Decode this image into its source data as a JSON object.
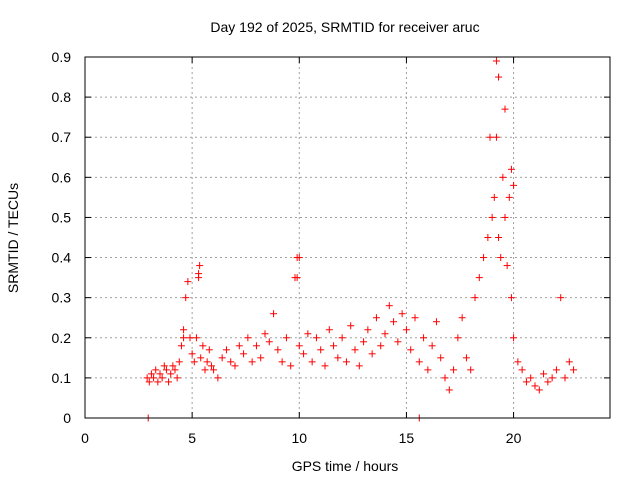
{
  "chart_data": {
    "type": "scatter",
    "title": "Day 192 of 2025, SRMTID for receiver aruc",
    "xlabel": "GPS time / hours",
    "ylabel": "SRMTID / TECUs",
    "xlim": [
      0,
      24.5
    ],
    "ylim": [
      0,
      0.9
    ],
    "xticks": [
      0,
      5,
      10,
      15,
      20
    ],
    "yticks": [
      0,
      0.1,
      0.2,
      0.3,
      0.4,
      0.5,
      0.6,
      0.7,
      0.8,
      0.9
    ],
    "xtick_labels": [
      "0",
      "5",
      "10",
      "15",
      "20"
    ],
    "ytick_labels": [
      "0",
      "0.1",
      "0.2",
      "0.3",
      "0.4",
      "0.5",
      "0.6",
      "0.7",
      "0.8",
      "0.9"
    ],
    "grid": true,
    "color": "#ff0000",
    "marker": "plus",
    "series": [
      {
        "name": "SRMTID",
        "x": [
          2.9,
          3.0,
          3.1,
          3.2,
          3.3,
          3.4,
          3.5,
          3.6,
          3.7,
          3.8,
          3.9,
          4.0,
          4.1,
          4.2,
          4.3,
          4.4,
          4.5,
          4.6,
          4.7,
          4.8,
          4.9,
          5.0,
          5.1,
          5.2,
          5.3,
          5.35,
          5.4,
          5.5,
          5.6,
          5.7,
          5.8,
          5.9,
          6.0,
          6.2,
          6.4,
          6.6,
          6.8,
          7.0,
          7.2,
          7.4,
          7.6,
          7.8,
          8.0,
          8.2,
          8.4,
          8.6,
          8.8,
          9.0,
          9.2,
          9.4,
          9.6,
          9.8,
          9.9,
          10.0,
          10.2,
          10.4,
          10.6,
          10.8,
          11.0,
          11.2,
          11.4,
          11.6,
          11.8,
          12.0,
          12.2,
          12.4,
          12.6,
          12.8,
          13.0,
          13.2,
          13.4,
          13.6,
          13.8,
          14.0,
          14.2,
          14.4,
          14.6,
          14.8,
          15.0,
          15.2,
          15.4,
          15.6,
          15.8,
          16.0,
          16.2,
          16.4,
          16.6,
          16.8,
          17.0,
          17.2,
          17.4,
          17.6,
          17.8,
          18.0,
          18.2,
          18.4,
          18.6,
          18.8,
          19.0,
          19.1,
          19.2,
          19.3,
          19.4,
          19.5,
          19.6,
          19.7,
          19.8,
          19.9,
          20.0,
          20.2,
          20.4,
          20.6,
          20.8,
          21.0,
          21.2,
          21.4,
          21.6,
          21.8,
          22.0,
          22.2,
          22.4,
          22.6,
          22.8,
          2.95,
          4.6,
          5.3,
          9.9,
          10.0,
          18.9,
          19.2,
          19.3,
          19.6,
          19.9,
          20.0,
          15.6
        ],
        "values": [
          0.1,
          0.09,
          0.11,
          0.1,
          0.12,
          0.09,
          0.11,
          0.1,
          0.13,
          0.12,
          0.09,
          0.11,
          0.13,
          0.12,
          0.1,
          0.14,
          0.18,
          0.22,
          0.3,
          0.34,
          0.2,
          0.16,
          0.14,
          0.2,
          0.36,
          0.38,
          0.15,
          0.18,
          0.12,
          0.14,
          0.17,
          0.13,
          0.12,
          0.1,
          0.15,
          0.17,
          0.14,
          0.13,
          0.18,
          0.16,
          0.2,
          0.14,
          0.18,
          0.15,
          0.21,
          0.19,
          0.26,
          0.17,
          0.14,
          0.2,
          0.13,
          0.35,
          0.4,
          0.18,
          0.16,
          0.21,
          0.14,
          0.2,
          0.17,
          0.13,
          0.22,
          0.18,
          0.15,
          0.2,
          0.14,
          0.23,
          0.17,
          0.13,
          0.19,
          0.22,
          0.16,
          0.25,
          0.18,
          0.21,
          0.28,
          0.24,
          0.19,
          0.26,
          0.22,
          0.17,
          0.25,
          0.14,
          0.2,
          0.12,
          0.18,
          0.24,
          0.15,
          0.1,
          0.07,
          0.12,
          0.2,
          0.25,
          0.15,
          0.12,
          0.3,
          0.35,
          0.4,
          0.45,
          0.5,
          0.55,
          0.7,
          0.45,
          0.4,
          0.6,
          0.5,
          0.38,
          0.55,
          0.3,
          0.2,
          0.14,
          0.12,
          0.09,
          0.1,
          0.08,
          0.07,
          0.11,
          0.09,
          0.1,
          0.12,
          0.3,
          0.1,
          0.14,
          0.12,
          0.0,
          0.2,
          0.35,
          0.35,
          0.4,
          0.7,
          0.89,
          0.85,
          0.77,
          0.62,
          0.58,
          0.0
        ]
      }
    ]
  }
}
